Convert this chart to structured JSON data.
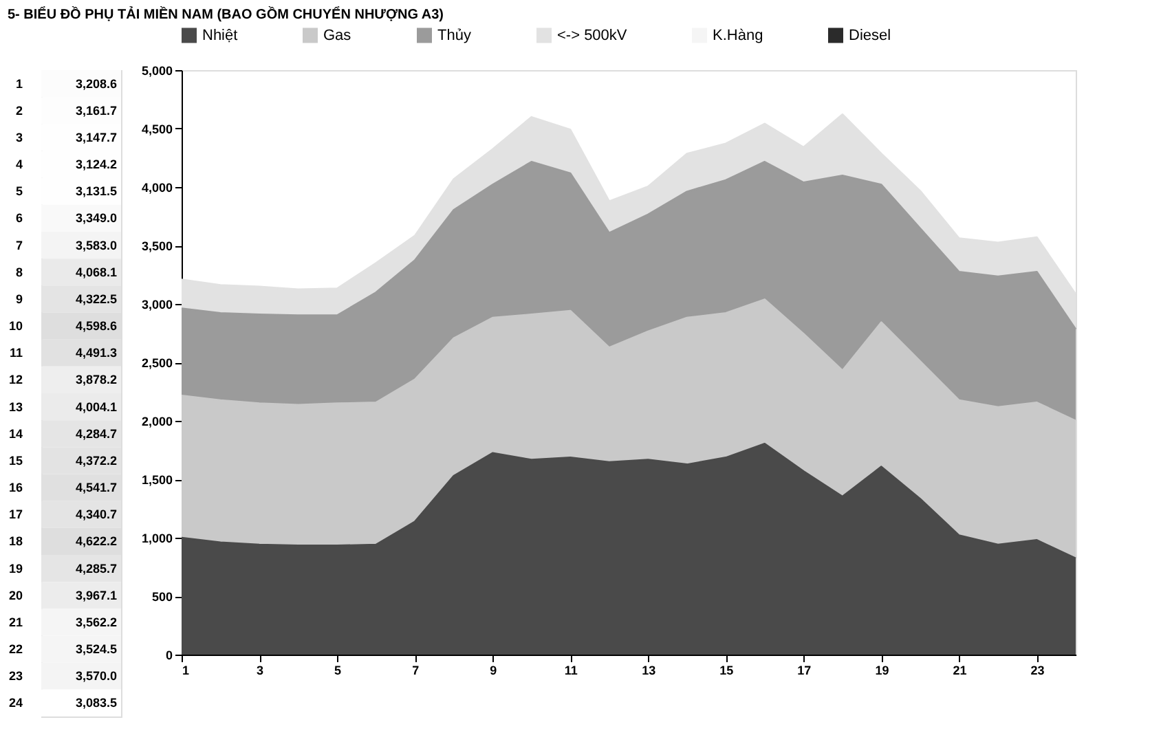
{
  "chart_data": [
    {
      "type": "area",
      "title": "5- BIỂU ĐỒ PHỤ TẢI MIỀN NAM (BAO GỒM CHUYỂN NHƯỢNG A3)",
      "stacked": true,
      "legend": "top",
      "grid": false,
      "x": [
        1,
        2,
        3,
        4,
        5,
        6,
        7,
        8,
        9,
        10,
        11,
        12,
        13,
        14,
        15,
        16,
        17,
        18,
        19,
        20,
        21,
        22,
        23,
        24
      ],
      "xlim": [
        1,
        24
      ],
      "xticks": [
        1,
        3,
        5,
        7,
        9,
        11,
        13,
        15,
        17,
        19,
        21,
        23
      ],
      "ylim": [
        0,
        5000
      ],
      "yticks": [
        0,
        500,
        {
          "value": 1000,
          "label": "1,000"
        },
        {
          "value": 1500,
          "label": "1,500"
        },
        {
          "value": 2000,
          "label": "2,000"
        },
        {
          "value": 2500,
          "label": "2,500"
        },
        {
          "value": 3000,
          "label": "3,000"
        },
        {
          "value": 3500,
          "label": "3,500"
        },
        {
          "value": 4000,
          "label": "4,000"
        },
        {
          "value": 4500,
          "label": "4,500"
        },
        {
          "value": 5000,
          "label": "5,000"
        }
      ],
      "series": [
        {
          "name": "Nhiệt",
          "color": "#4a4a4a",
          "values": [
            1000,
            960,
            941,
            933,
            933,
            941,
            1137,
            1529,
            1725,
            1667,
            1686,
            1647,
            1667,
            1627,
            1686,
            1804,
            1569,
            1353,
            1608,
            1333,
            1020,
            941,
            980,
            824
          ]
        },
        {
          "name": "Gas",
          "color": "#c9c9c9",
          "values": [
            1216,
            1216,
            1208,
            1204,
            1216,
            1216,
            1216,
            1177,
            1157,
            1243,
            1255,
            980,
            1098,
            1255,
            1236,
            1235,
            1176,
            1078,
            1235,
            1177,
            1156,
            1177,
            1177,
            1176
          ]
        },
        {
          "name": "Thủy",
          "color": "#9b9b9b",
          "values": [
            745,
            746,
            761,
            765,
            753,
            941,
            1020,
            1098,
            1138,
            1306,
            1177,
            981,
            1000,
            1079,
            1137,
            1177,
            1294,
            1667,
            1177,
            1137,
            1099,
            1117,
            1118,
            784
          ]
        },
        {
          "name": "<-> 500kV",
          "color": "#e2e2e2",
          "values": [
            248,
            240,
            238,
            222,
            230,
            251,
            210,
            264,
            303,
            383,
            373,
            270,
            239,
            324,
            313,
            326,
            302,
            524,
            266,
            320,
            287,
            290,
            295,
            300
          ]
        },
        {
          "name": "K.Hàng",
          "color": "#f5f5f5",
          "values": [
            null,
            null,
            null,
            null,
            null,
            null,
            null,
            null,
            null,
            null,
            null,
            null,
            null,
            null,
            null,
            null,
            null,
            null,
            null,
            null,
            null,
            null,
            null,
            null
          ]
        },
        {
          "name": "Diesel",
          "color": "#2b2b2b",
          "values": [
            null,
            null,
            null,
            null,
            null,
            null,
            null,
            null,
            null,
            null,
            null,
            null,
            null,
            null,
            null,
            null,
            null,
            null,
            null,
            null,
            null,
            null,
            null,
            null
          ]
        }
      ]
    },
    {
      "type": "heatmap",
      "categories": [
        null
      ],
      "y_categories": [
        "1",
        "2",
        "3",
        "4",
        "5",
        "6",
        "7",
        "8",
        "9",
        "10",
        "11",
        "12",
        "13",
        "14",
        "15",
        "16",
        "17",
        "18",
        "19",
        "20",
        "21",
        "22",
        "23",
        "24"
      ],
      "cells": [
        [
          3208.6
        ],
        [
          3161.7
        ],
        [
          3147.7
        ],
        [
          3124.2
        ],
        [
          3131.5
        ],
        [
          3349.0
        ],
        [
          3583.0
        ],
        [
          4068.1
        ],
        [
          4322.5
        ],
        [
          4598.6
        ],
        [
          4491.3
        ],
        [
          3878.2
        ],
        [
          4004.1
        ],
        [
          4284.7
        ],
        [
          4372.2
        ],
        [
          4541.7
        ],
        [
          4340.7
        ],
        [
          4622.2
        ],
        [
          4285.7
        ],
        [
          3967.1
        ],
        [
          3562.2
        ],
        [
          3524.5
        ],
        [
          3570.0
        ],
        [
          3083.5
        ]
      ],
      "cell_labels": [
        [
          "3,208.6"
        ],
        [
          "3,161.7"
        ],
        [
          "3,147.7"
        ],
        [
          "3,124.2"
        ],
        [
          "3,131.5"
        ],
        [
          "3,349.0"
        ],
        [
          "3,583.0"
        ],
        [
          "4,068.1"
        ],
        [
          "4,322.5"
        ],
        [
          "4,598.6"
        ],
        [
          "4,491.3"
        ],
        [
          "3,878.2"
        ],
        [
          "4,004.1"
        ],
        [
          "4,284.7"
        ],
        [
          "4,372.2"
        ],
        [
          "4,541.7"
        ],
        [
          "4,340.7"
        ],
        [
          "4,622.2"
        ],
        [
          "4,285.7"
        ],
        [
          "3,967.1"
        ],
        [
          "3,562.2"
        ],
        [
          "3,524.5"
        ],
        [
          "3,570.0"
        ],
        [
          "3,083.5"
        ]
      ]
    }
  ]
}
